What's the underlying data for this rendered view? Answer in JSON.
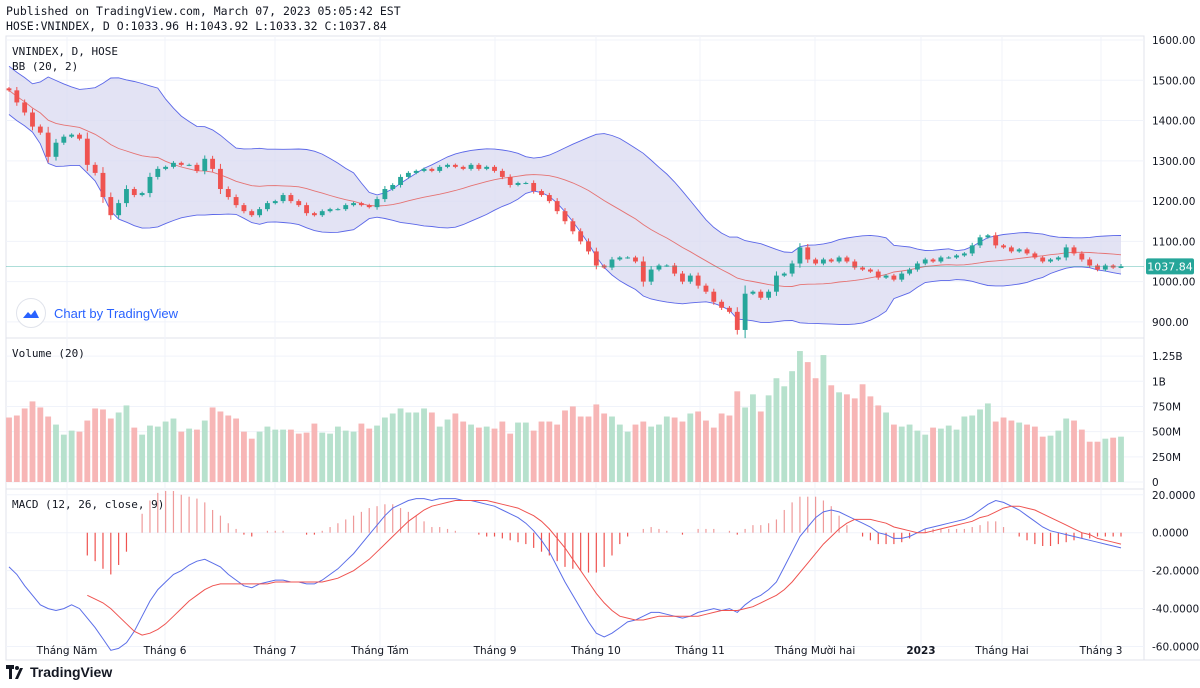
{
  "header": {
    "published": "Published on TradingView.com, March 07, 2023 05:05:42 EST",
    "ohlc": "HOSE:VNINDEX, D O:1033.96 H:1043.92 L:1033.32 C:1037.84"
  },
  "legend": {
    "symbol": "VNINDEX, D, HOSE",
    "bb": "BB (20, 2)",
    "volume": "Volume (20)",
    "macd": "MACD (12, 26, close, 9)"
  },
  "price_badge": "1037.84",
  "watermark": "Chart by TradingView",
  "footer_brand": "TradingView",
  "colors": {
    "up": "#26a69a",
    "down": "#ef5350",
    "up_vol": "#b7e1cd",
    "down_vol": "#f7b6b6",
    "bb_fill": "#d9d9f0",
    "bb_line": "#5b67e8",
    "basis": "#e57373",
    "macd": "#5b6ee8",
    "signal": "#ef5350",
    "badge": "#26a69a"
  },
  "chart_data": {
    "type": "candlestick",
    "title": "VNINDEX, D, HOSE",
    "x_labels": [
      "Tháng Năm",
      "Tháng 6",
      "Tháng 7",
      "Tháng Tám",
      "Tháng 9",
      "Tháng 10",
      "Tháng 11",
      "Tháng Mười hai",
      "2023",
      "Tháng Hai",
      "Tháng 3"
    ],
    "price_axis": {
      "ticks": [
        "1600.00",
        "1500.00",
        "1400.00",
        "1300.00",
        "1200.00",
        "1100.00",
        "1000.00",
        "900.00"
      ],
      "range": [
        860,
        1610
      ]
    },
    "volume_axis": {
      "ticks": [
        "1.25B",
        "1B",
        "750M",
        "500M",
        "250M",
        "0"
      ],
      "range": [
        0,
        1.35
      ]
    },
    "macd_axis": {
      "ticks": [
        "20.0000",
        "0.0000",
        "-20.0000",
        "-40.0000",
        "-60.0000"
      ],
      "range": [
        -65,
        22
      ]
    },
    "last": {
      "open": 1033.96,
      "high": 1043.92,
      "low": 1033.32,
      "close": 1037.84
    },
    "close_series": [
      1475,
      1445,
      1420,
      1385,
      1370,
      1310,
      1345,
      1360,
      1365,
      1355,
      1290,
      1270,
      1210,
      1165,
      1195,
      1230,
      1215,
      1220,
      1260,
      1280,
      1285,
      1295,
      1290,
      1290,
      1275,
      1305,
      1280,
      1230,
      1210,
      1190,
      1175,
      1165,
      1180,
      1195,
      1200,
      1215,
      1200,
      1190,
      1170,
      1165,
      1175,
      1180,
      1180,
      1190,
      1195,
      1190,
      1185,
      1205,
      1230,
      1240,
      1260,
      1270,
      1275,
      1280,
      1275,
      1285,
      1290,
      1285,
      1280,
      1290,
      1280,
      1285,
      1275,
      1260,
      1240,
      1245,
      1245,
      1225,
      1215,
      1200,
      1175,
      1150,
      1125,
      1100,
      1075,
      1040,
      1035,
      1055,
      1060,
      1060,
      1050,
      1000,
      1030,
      1040,
      1040,
      1020,
      1000,
      1015,
      990,
      975,
      950,
      935,
      925,
      880,
      970,
      975,
      960,
      975,
      1015,
      1020,
      1045,
      1085,
      1055,
      1045,
      1055,
      1050,
      1060,
      1050,
      1035,
      1030,
      1025,
      1010,
      1015,
      1005,
      1020,
      1030,
      1045,
      1055,
      1050,
      1060,
      1060,
      1065,
      1070,
      1090,
      1110,
      1115,
      1090,
      1085,
      1075,
      1080,
      1070,
      1060,
      1050,
      1055,
      1060,
      1085,
      1070,
      1055,
      1040,
      1030,
      1040,
      1035,
      1037.84
    ],
    "volume_series_B": [
      0.64,
      0.66,
      0.73,
      0.8,
      0.74,
      0.65,
      0.57,
      0.47,
      0.51,
      0.5,
      0.61,
      0.73,
      0.72,
      0.63,
      0.69,
      0.76,
      0.54,
      0.47,
      0.56,
      0.55,
      0.6,
      0.63,
      0.5,
      0.53,
      0.52,
      0.61,
      0.74,
      0.7,
      0.66,
      0.63,
      0.5,
      0.43,
      0.5,
      0.55,
      0.52,
      0.52,
      0.52,
      0.48,
      0.49,
      0.58,
      0.49,
      0.48,
      0.55,
      0.51,
      0.5,
      0.58,
      0.53,
      0.56,
      0.64,
      0.68,
      0.73,
      0.69,
      0.69,
      0.73,
      0.69,
      0.55,
      0.62,
      0.68,
      0.6,
      0.57,
      0.54,
      0.55,
      0.53,
      0.6,
      0.48,
      0.59,
      0.59,
      0.51,
      0.6,
      0.6,
      0.57,
      0.71,
      0.75,
      0.65,
      0.65,
      0.77,
      0.68,
      0.65,
      0.57,
      0.5,
      0.57,
      0.6,
      0.55,
      0.57,
      0.65,
      0.64,
      0.6,
      0.68,
      0.7,
      0.61,
      0.54,
      0.68,
      0.66,
      0.9,
      0.74,
      0.87,
      0.7,
      0.86,
      1.03,
      0.95,
      1.1,
      1.3,
      1.19,
      1.03,
      1.26,
      0.96,
      0.89,
      0.87,
      0.83,
      0.97,
      0.85,
      0.76,
      0.69,
      0.57,
      0.55,
      0.57,
      0.51,
      0.47,
      0.54,
      0.53,
      0.56,
      0.52,
      0.65,
      0.66,
      0.72,
      0.78,
      0.6,
      0.64,
      0.61,
      0.59,
      0.57,
      0.55,
      0.45,
      0.46,
      0.51,
      0.63,
      0.61,
      0.52,
      0.4,
      0.4,
      0.43,
      0.44,
      0.45
    ],
    "macd_series": [
      -18,
      -22,
      -28,
      -33,
      -38,
      -40,
      -41,
      -40,
      -38,
      -40,
      -45,
      -50,
      -56,
      -62,
      -61,
      -58,
      -52,
      -44,
      -36,
      -30,
      -26,
      -22,
      -20,
      -17,
      -15,
      -14,
      -16,
      -18,
      -22,
      -25,
      -28,
      -29,
      -27,
      -26,
      -25,
      -25,
      -26,
      -26,
      -27,
      -27,
      -25,
      -22,
      -19,
      -15,
      -11,
      -6,
      -1,
      4,
      9,
      13,
      15,
      17,
      18,
      18,
      17,
      18,
      18,
      18,
      17,
      17,
      16,
      15,
      14,
      12,
      10,
      8,
      5,
      1,
      -4,
      -10,
      -18,
      -26,
      -33,
      -40,
      -47,
      -53,
      -55,
      -53,
      -50,
      -47,
      -46,
      -44,
      -42,
      -42,
      -43,
      -44,
      -45,
      -44,
      -42,
      -41,
      -40,
      -41,
      -40,
      -42,
      -38,
      -35,
      -33,
      -30,
      -26,
      -18,
      -10,
      -2,
      3,
      8,
      11,
      12,
      11,
      9,
      7,
      5,
      3,
      0,
      -1,
      -3,
      -3,
      -2,
      0,
      2,
      3,
      4,
      5,
      6,
      7,
      9,
      12,
      15,
      17,
      16,
      14,
      12,
      9,
      6,
      3,
      1,
      0,
      -1,
      -2,
      -3,
      -4,
      -5,
      -6,
      -7,
      -8
    ],
    "signal_series": [
      null,
      null,
      null,
      null,
      null,
      null,
      null,
      null,
      null,
      null,
      -33,
      -35,
      -37,
      -40,
      -44,
      -48,
      -52,
      -54,
      -53,
      -51,
      -48,
      -44,
      -40,
      -36,
      -33,
      -30,
      -28,
      -27,
      -27,
      -27,
      -27,
      -27,
      -27,
      -27,
      -26,
      -26,
      -26,
      -26,
      -26,
      -26,
      -26,
      -25,
      -24,
      -22,
      -20,
      -17,
      -14,
      -10,
      -6,
      -2,
      2,
      6,
      9,
      12,
      14,
      15,
      16,
      17,
      17,
      17,
      17,
      17,
      16,
      15,
      14,
      13,
      11,
      9,
      6,
      2,
      -3,
      -8,
      -14,
      -20,
      -26,
      -32,
      -37,
      -41,
      -44,
      -45,
      -46,
      -46,
      -45,
      -44,
      -44,
      -44,
      -44,
      -44,
      -44,
      -43,
      -42,
      -41,
      -41,
      -41,
      -40,
      -39,
      -37,
      -35,
      -33,
      -30,
      -26,
      -21,
      -16,
      -11,
      -6,
      -2,
      2,
      5,
      7,
      7,
      7,
      6,
      5,
      3,
      2,
      1,
      0,
      0,
      1,
      2,
      3,
      4,
      5,
      6,
      8,
      9,
      11,
      13,
      14,
      14,
      13,
      12,
      10,
      8,
      6,
      4,
      2,
      0,
      -1,
      -3,
      -4,
      -5,
      -6
    ]
  }
}
